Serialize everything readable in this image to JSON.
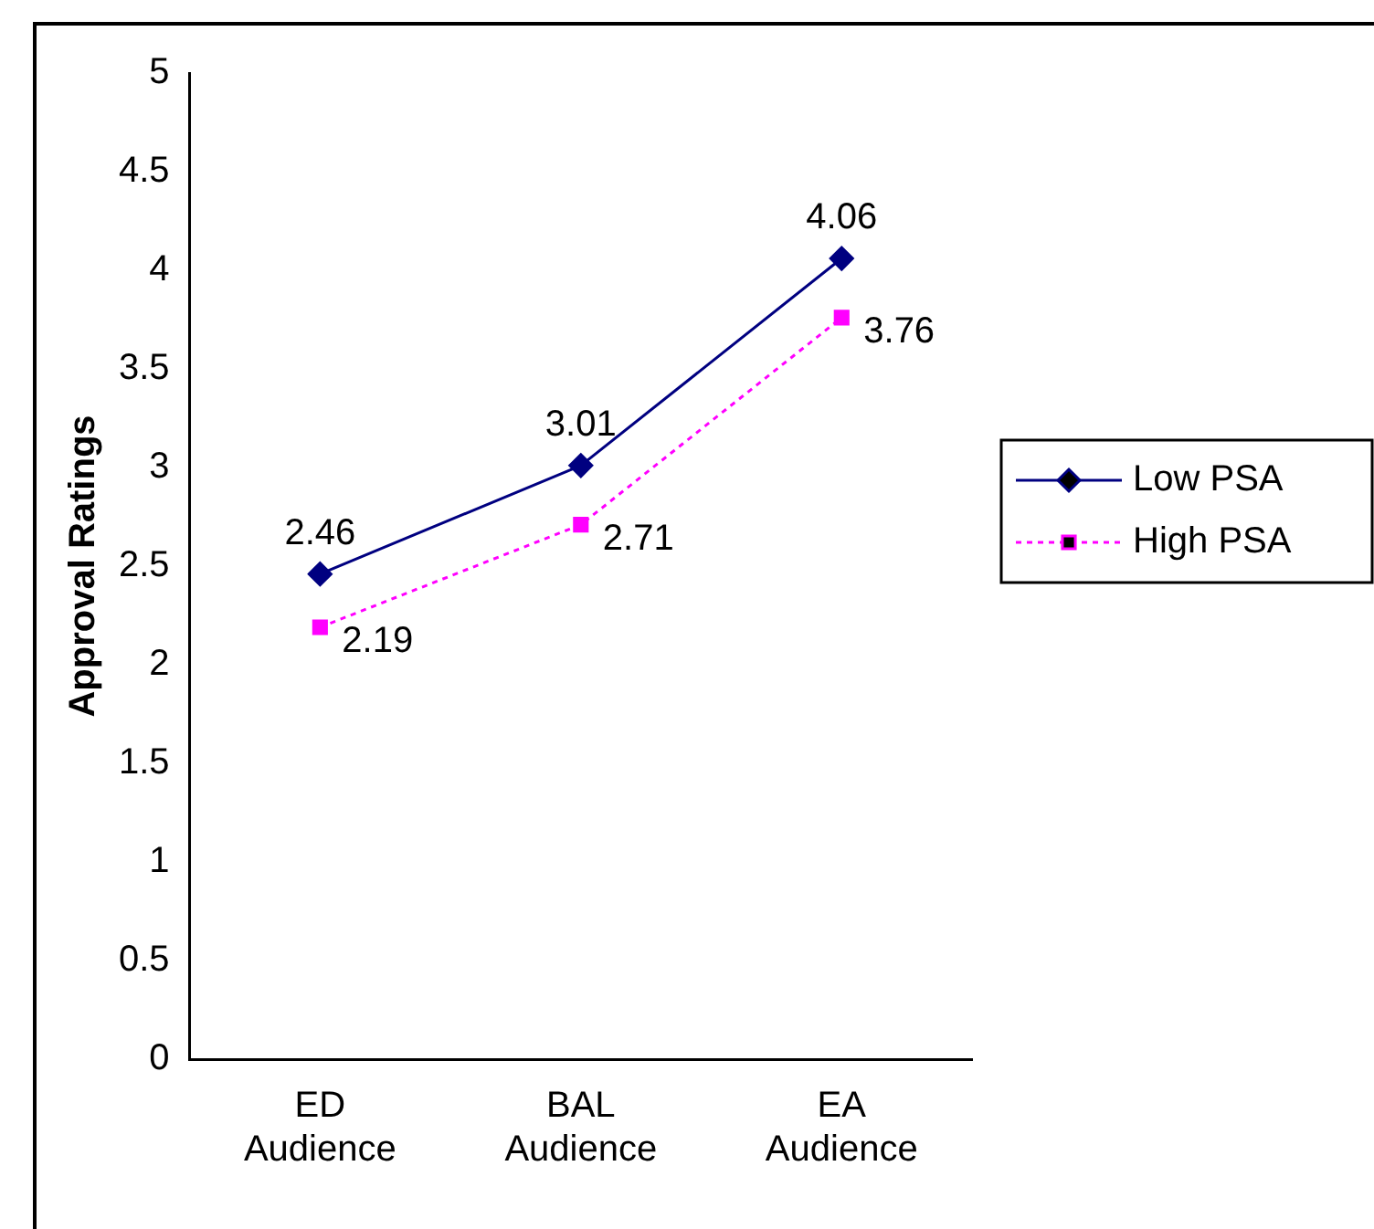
{
  "chart_data": {
    "type": "line",
    "ylabel": "Approval Ratings",
    "categories": [
      "ED Audience",
      "BAL Audience",
      "EA Audience"
    ],
    "series": [
      {
        "name": "Low PSA",
        "color": "#000080",
        "values": [
          2.46,
          3.01,
          4.06
        ],
        "marker": "diamond",
        "line_style": "solid"
      },
      {
        "name": "High PSA",
        "color": "#ff00ff",
        "values": [
          2.19,
          2.71,
          3.76
        ],
        "marker": "square",
        "line_style": "dotted"
      }
    ],
    "ylim": [
      0,
      5
    ],
    "yticks": [
      0,
      0.5,
      1,
      1.5,
      2,
      2.5,
      3,
      3.5,
      4,
      4.5,
      5
    ],
    "grid": false,
    "legend": "right",
    "data_labels": true
  }
}
